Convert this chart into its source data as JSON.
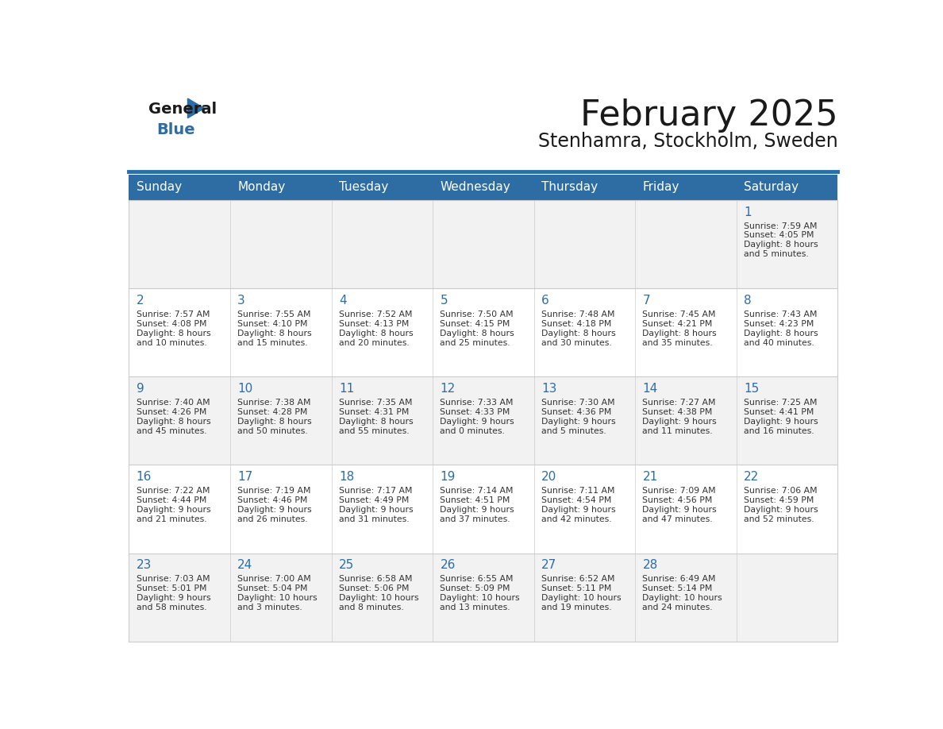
{
  "title": "February 2025",
  "subtitle": "Stenhamra, Stockholm, Sweden",
  "days_of_week": [
    "Sunday",
    "Monday",
    "Tuesday",
    "Wednesday",
    "Thursday",
    "Friday",
    "Saturday"
  ],
  "header_bg": "#2E6DA4",
  "header_text": "#FFFFFF",
  "row_bg_odd": "#F2F2F2",
  "row_bg_even": "#FFFFFF",
  "cell_border": "#CCCCCC",
  "day_number_color": "#2E6DA4",
  "info_text_color": "#333333",
  "logo_general_color": "#1A1A1A",
  "logo_blue_color": "#2E6DA4",
  "calendar_data": [
    [
      null,
      null,
      null,
      null,
      null,
      null,
      {
        "day": 1,
        "sunrise": "7:59 AM",
        "sunset": "4:05 PM",
        "daylight_1": "8 hours",
        "daylight_2": "and 5 minutes."
      }
    ],
    [
      {
        "day": 2,
        "sunrise": "7:57 AM",
        "sunset": "4:08 PM",
        "daylight_1": "8 hours",
        "daylight_2": "and 10 minutes."
      },
      {
        "day": 3,
        "sunrise": "7:55 AM",
        "sunset": "4:10 PM",
        "daylight_1": "8 hours",
        "daylight_2": "and 15 minutes."
      },
      {
        "day": 4,
        "sunrise": "7:52 AM",
        "sunset": "4:13 PM",
        "daylight_1": "8 hours",
        "daylight_2": "and 20 minutes."
      },
      {
        "day": 5,
        "sunrise": "7:50 AM",
        "sunset": "4:15 PM",
        "daylight_1": "8 hours",
        "daylight_2": "and 25 minutes."
      },
      {
        "day": 6,
        "sunrise": "7:48 AM",
        "sunset": "4:18 PM",
        "daylight_1": "8 hours",
        "daylight_2": "and 30 minutes."
      },
      {
        "day": 7,
        "sunrise": "7:45 AM",
        "sunset": "4:21 PM",
        "daylight_1": "8 hours",
        "daylight_2": "and 35 minutes."
      },
      {
        "day": 8,
        "sunrise": "7:43 AM",
        "sunset": "4:23 PM",
        "daylight_1": "8 hours",
        "daylight_2": "and 40 minutes."
      }
    ],
    [
      {
        "day": 9,
        "sunrise": "7:40 AM",
        "sunset": "4:26 PM",
        "daylight_1": "8 hours",
        "daylight_2": "and 45 minutes."
      },
      {
        "day": 10,
        "sunrise": "7:38 AM",
        "sunset": "4:28 PM",
        "daylight_1": "8 hours",
        "daylight_2": "and 50 minutes."
      },
      {
        "day": 11,
        "sunrise": "7:35 AM",
        "sunset": "4:31 PM",
        "daylight_1": "8 hours",
        "daylight_2": "and 55 minutes."
      },
      {
        "day": 12,
        "sunrise": "7:33 AM",
        "sunset": "4:33 PM",
        "daylight_1": "9 hours",
        "daylight_2": "and 0 minutes."
      },
      {
        "day": 13,
        "sunrise": "7:30 AM",
        "sunset": "4:36 PM",
        "daylight_1": "9 hours",
        "daylight_2": "and 5 minutes."
      },
      {
        "day": 14,
        "sunrise": "7:27 AM",
        "sunset": "4:38 PM",
        "daylight_1": "9 hours",
        "daylight_2": "and 11 minutes."
      },
      {
        "day": 15,
        "sunrise": "7:25 AM",
        "sunset": "4:41 PM",
        "daylight_1": "9 hours",
        "daylight_2": "and 16 minutes."
      }
    ],
    [
      {
        "day": 16,
        "sunrise": "7:22 AM",
        "sunset": "4:44 PM",
        "daylight_1": "9 hours",
        "daylight_2": "and 21 minutes."
      },
      {
        "day": 17,
        "sunrise": "7:19 AM",
        "sunset": "4:46 PM",
        "daylight_1": "9 hours",
        "daylight_2": "and 26 minutes."
      },
      {
        "day": 18,
        "sunrise": "7:17 AM",
        "sunset": "4:49 PM",
        "daylight_1": "9 hours",
        "daylight_2": "and 31 minutes."
      },
      {
        "day": 19,
        "sunrise": "7:14 AM",
        "sunset": "4:51 PM",
        "daylight_1": "9 hours",
        "daylight_2": "and 37 minutes."
      },
      {
        "day": 20,
        "sunrise": "7:11 AM",
        "sunset": "4:54 PM",
        "daylight_1": "9 hours",
        "daylight_2": "and 42 minutes."
      },
      {
        "day": 21,
        "sunrise": "7:09 AM",
        "sunset": "4:56 PM",
        "daylight_1": "9 hours",
        "daylight_2": "and 47 minutes."
      },
      {
        "day": 22,
        "sunrise": "7:06 AM",
        "sunset": "4:59 PM",
        "daylight_1": "9 hours",
        "daylight_2": "and 52 minutes."
      }
    ],
    [
      {
        "day": 23,
        "sunrise": "7:03 AM",
        "sunset": "5:01 PM",
        "daylight_1": "9 hours",
        "daylight_2": "and 58 minutes."
      },
      {
        "day": 24,
        "sunrise": "7:00 AM",
        "sunset": "5:04 PM",
        "daylight_1": "10 hours",
        "daylight_2": "and 3 minutes."
      },
      {
        "day": 25,
        "sunrise": "6:58 AM",
        "sunset": "5:06 PM",
        "daylight_1": "10 hours",
        "daylight_2": "and 8 minutes."
      },
      {
        "day": 26,
        "sunrise": "6:55 AM",
        "sunset": "5:09 PM",
        "daylight_1": "10 hours",
        "daylight_2": "and 13 minutes."
      },
      {
        "day": 27,
        "sunrise": "6:52 AM",
        "sunset": "5:11 PM",
        "daylight_1": "10 hours",
        "daylight_2": "and 19 minutes."
      },
      {
        "day": 28,
        "sunrise": "6:49 AM",
        "sunset": "5:14 PM",
        "daylight_1": "10 hours",
        "daylight_2": "and 24 minutes."
      },
      null
    ]
  ]
}
